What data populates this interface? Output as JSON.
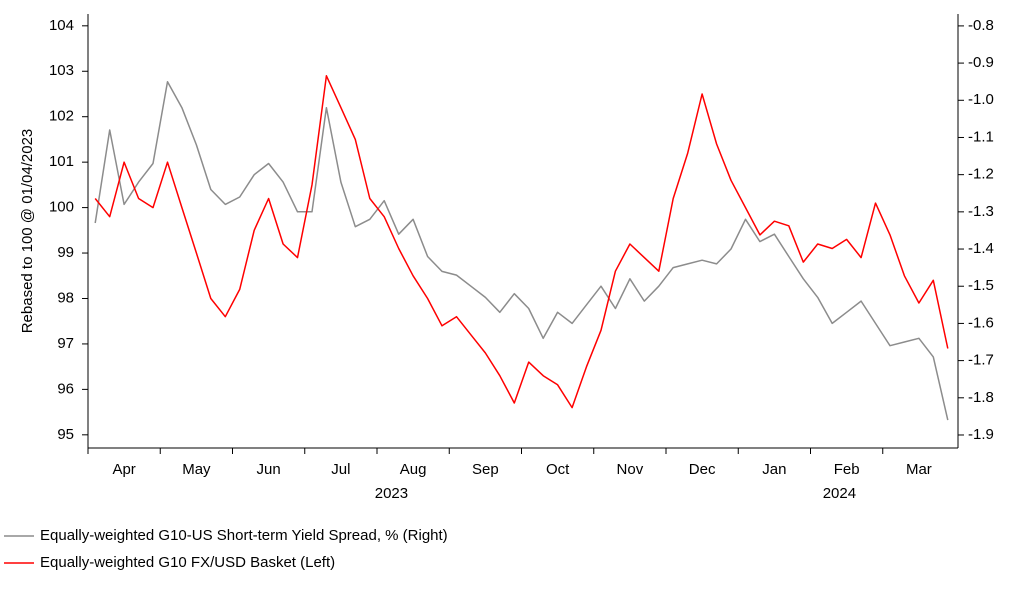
{
  "chart_data": {
    "type": "line",
    "y_label": "Rebased to 100 @ 01/04/2023",
    "categories": [
      "Apr",
      "May",
      "Jun",
      "Jul",
      "Aug",
      "Sep",
      "Oct",
      "Nov",
      "Dec",
      "Jan",
      "Feb",
      "Mar"
    ],
    "year_labels": [
      "2023",
      "2024"
    ],
    "ylim": [
      94.71,
      104.26
    ],
    "yticks": [
      95,
      96,
      97,
      98,
      99,
      100,
      101,
      102,
      103,
      104
    ],
    "y2lim": [
      -1.935,
      -0.768
    ],
    "y2ticks": [
      -1.9,
      -1.8,
      -1.7,
      -1.6,
      -1.5,
      -1.4,
      -1.3,
      -1.2,
      -1.1,
      {
        "value": -1.0,
        "label": "-1.0"
      },
      -0.9,
      -0.8
    ],
    "legend": "bottom",
    "series": [
      {
        "name": "Equally-weighted G10-US Short-term Yield Spread, % (Right)",
        "color": "#8c8c8c",
        "axis": "y2",
        "values": [
          [
            -1.33,
            -1.08,
            -1.28,
            -1.22,
            -1.17
          ],
          [
            -0.95,
            -1.02,
            -1.12,
            -1.24,
            -1.28
          ],
          [
            -1.26,
            -1.2,
            -1.17,
            -1.22,
            -1.3
          ],
          [
            -1.3,
            -1.02,
            -1.22,
            -1.34,
            -1.32
          ],
          [
            -1.27,
            -1.36,
            -1.32,
            -1.42,
            -1.46
          ],
          [
            -1.47,
            -1.5,
            -1.53,
            -1.57,
            -1.52
          ],
          [
            -1.56,
            -1.64,
            -1.57,
            -1.6,
            -1.55
          ],
          [
            -1.5,
            -1.56,
            -1.48,
            -1.54,
            -1.5
          ],
          [
            -1.45,
            -1.44,
            -1.43,
            -1.44,
            -1.4
          ],
          [
            -1.32,
            -1.38,
            -1.36,
            -1.42,
            -1.48
          ],
          [
            -1.53,
            -1.6,
            -1.57,
            -1.54,
            -1.6
          ],
          [
            -1.66,
            -1.65,
            -1.64,
            -1.69,
            -1.86
          ]
        ]
      },
      {
        "name": "Equally-weighted G10 FX/USD Basket (Left)",
        "color": "#ff0000",
        "axis": "y",
        "values": [
          [
            100.2,
            99.8,
            101.0,
            100.2,
            100.0
          ],
          [
            101.0,
            100.0,
            99.0,
            98.0,
            97.6
          ],
          [
            98.2,
            99.5,
            100.2,
            99.2,
            98.9
          ],
          [
            100.5,
            102.9,
            102.2,
            101.5,
            100.2
          ],
          [
            99.8,
            99.1,
            98.5,
            98.0,
            97.4
          ],
          [
            97.6,
            97.2,
            96.8,
            96.3,
            95.7
          ],
          [
            96.6,
            96.3,
            96.1,
            95.6,
            96.5
          ],
          [
            97.3,
            98.6,
            99.2,
            98.9,
            98.6
          ],
          [
            100.2,
            101.2,
            102.5,
            101.4,
            100.6
          ],
          [
            100.0,
            99.4,
            99.7,
            99.6,
            98.8
          ],
          [
            99.2,
            99.1,
            99.3,
            98.9,
            100.1
          ],
          [
            99.4,
            98.5,
            97.9,
            98.4,
            96.9
          ]
        ]
      }
    ]
  }
}
